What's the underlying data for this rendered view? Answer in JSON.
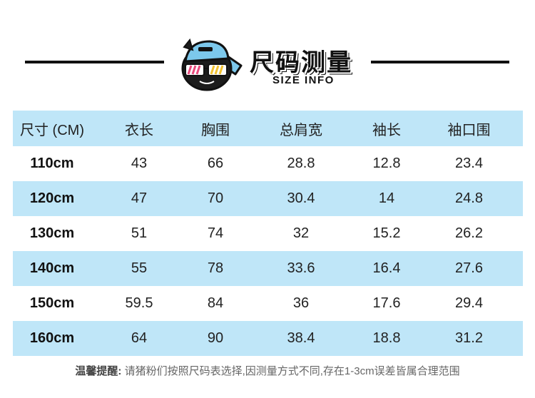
{
  "header": {
    "title": "尺码测量",
    "subtitle": "SIZE INFO",
    "mascot_icon": "cap-sunglasses-mascot-icon"
  },
  "colors": {
    "band": "#bfe6f8",
    "rule": "#111111",
    "accent": "#7cc8ec"
  },
  "table": {
    "columns": [
      "尺寸 (CM)",
      "衣长",
      "胸围",
      "总肩宽",
      "袖长",
      "袖口围"
    ],
    "rows": [
      [
        "110cm",
        "43",
        "66",
        "28.8",
        "12.8",
        "23.4"
      ],
      [
        "120cm",
        "47",
        "70",
        "30.4",
        "14",
        "24.8"
      ],
      [
        "130cm",
        "51",
        "74",
        "32",
        "15.2",
        "26.2"
      ],
      [
        "140cm",
        "55",
        "78",
        "33.6",
        "16.4",
        "27.6"
      ],
      [
        "150cm",
        "59.5",
        "84",
        "36",
        "17.6",
        "29.4"
      ],
      [
        "160cm",
        "64",
        "90",
        "38.4",
        "18.8",
        "31.2"
      ]
    ]
  },
  "note": {
    "label": "温馨提醒:",
    "text": " 请猪粉们按照尺码表选择,因测量方式不同,存在1-3cm误差皆属合理范围"
  }
}
